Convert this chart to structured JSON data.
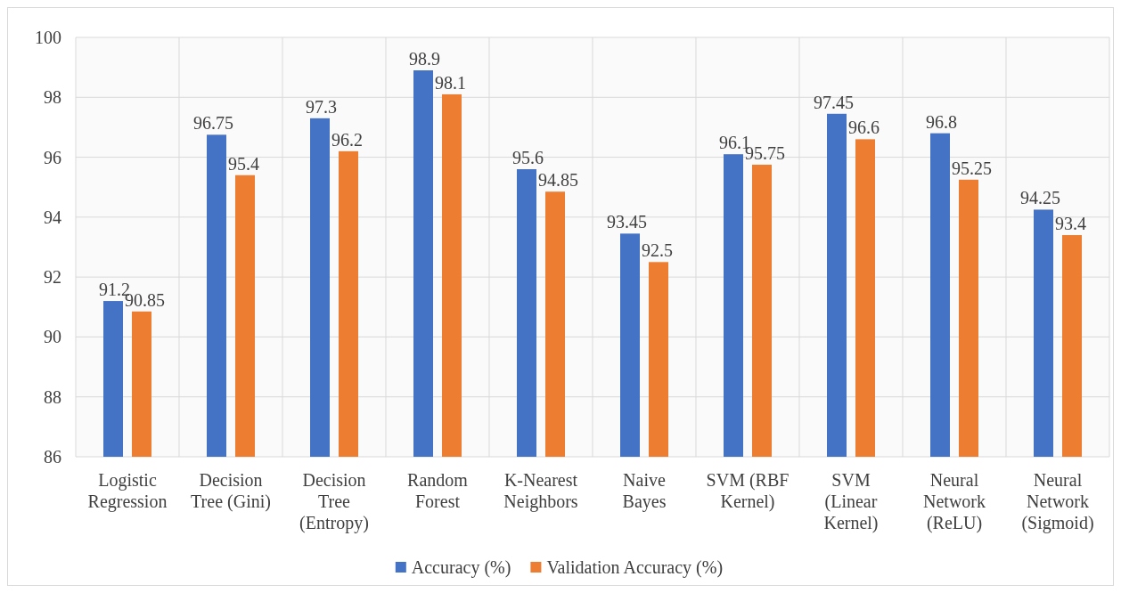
{
  "chart_data": {
    "type": "bar",
    "categories": [
      "Logistic Regression",
      "Decision Tree (Gini)",
      "Decision Tree (Entropy)",
      "Random Forest",
      "K-Nearest Neighbors",
      "Naive Bayes",
      "SVM (RBF Kernel)",
      "SVM (Linear Kernel)",
      "Neural Network (ReLU)",
      "Neural Network (Sigmoid)"
    ],
    "series": [
      {
        "name": "Accuracy (%)",
        "color": "#4472c4",
        "values": [
          91.2,
          96.75,
          97.3,
          98.9,
          95.6,
          93.45,
          96.1,
          97.45,
          96.8,
          94.25
        ]
      },
      {
        "name": "Validation Accuracy (%)",
        "color": "#ed7d31",
        "values": [
          90.85,
          95.4,
          96.2,
          98.1,
          94.85,
          92.5,
          95.75,
          96.6,
          95.25,
          93.4
        ]
      }
    ],
    "ylim": [
      86,
      100
    ],
    "yticks": [
      86,
      88,
      90,
      92,
      94,
      96,
      98,
      100
    ],
    "grid": true,
    "legend": "bottom",
    "data_labels": true
  }
}
